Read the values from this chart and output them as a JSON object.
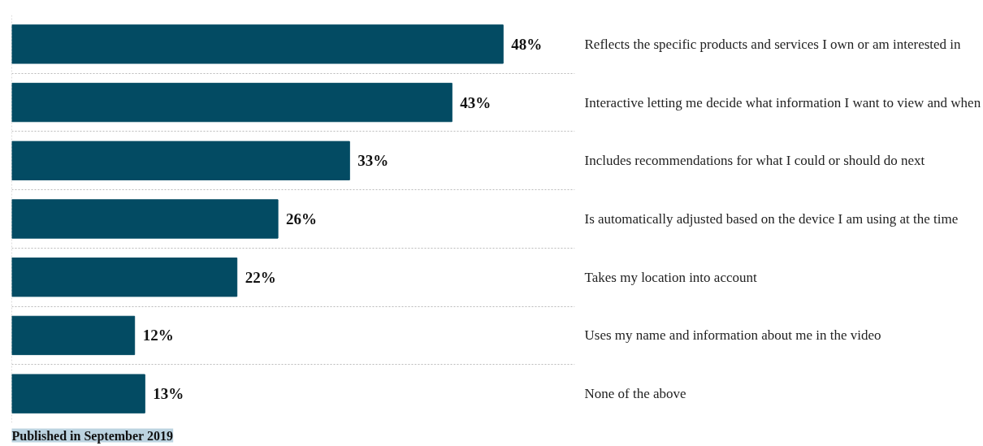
{
  "chart_data": {
    "type": "bar",
    "orientation": "horizontal",
    "categories": [
      "Reflects the specific products and services I own or am interested in",
      "Interactive letting me decide what information I want to view and when",
      "Includes recommendations for what I could or should do next",
      "Is automatically adjusted based on the device I am using at the time",
      "Takes my location into account",
      "Uses my name and information about me in the video",
      "None of the above"
    ],
    "values": [
      48,
      43,
      33,
      26,
      22,
      12,
      13
    ],
    "value_labels": [
      "48%",
      "43%",
      "33%",
      "26%",
      "22%",
      "12%",
      "13%"
    ],
    "color": "#034b63",
    "xlim": [
      0,
      55
    ],
    "grid": "y",
    "tick_labels": "y",
    "annotations": [
      "Published in September 2019"
    ]
  }
}
